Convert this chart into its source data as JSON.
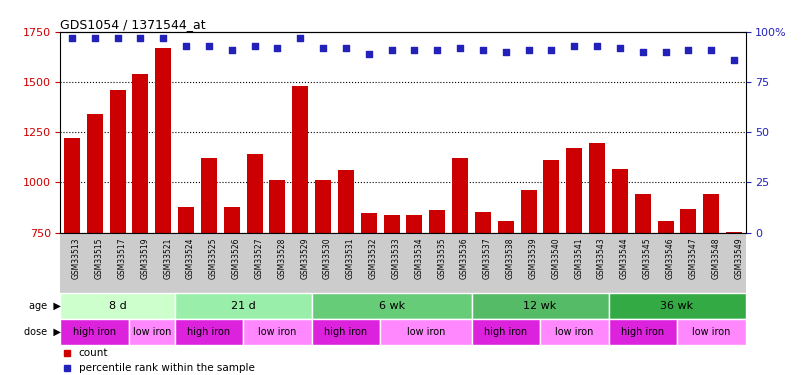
{
  "title": "GDS1054 / 1371544_at",
  "samples": [
    "GSM33513",
    "GSM33515",
    "GSM33517",
    "GSM33519",
    "GSM33521",
    "GSM33524",
    "GSM33525",
    "GSM33526",
    "GSM33527",
    "GSM33528",
    "GSM33529",
    "GSM33530",
    "GSM33531",
    "GSM33532",
    "GSM33533",
    "GSM33534",
    "GSM33535",
    "GSM33536",
    "GSM33537",
    "GSM33538",
    "GSM33539",
    "GSM33540",
    "GSM33541",
    "GSM33543",
    "GSM33544",
    "GSM33545",
    "GSM33546",
    "GSM33547",
    "GSM33548",
    "GSM33549"
  ],
  "counts": [
    1220,
    1340,
    1460,
    1540,
    1670,
    880,
    1120,
    880,
    1140,
    1010,
    1480,
    1010,
    1060,
    850,
    840,
    840,
    865,
    1120,
    855,
    810,
    960,
    1110,
    1170,
    1195,
    1065,
    940,
    810,
    870,
    940,
    755
  ],
  "percentiles": [
    97,
    97,
    97,
    97,
    97,
    93,
    93,
    91,
    93,
    92,
    97,
    92,
    92,
    89,
    91,
    91,
    91,
    92,
    91,
    90,
    91,
    91,
    93,
    93,
    92,
    90,
    90,
    91,
    91,
    86
  ],
  "ylim_left": [
    750,
    1750
  ],
  "ylim_right": [
    0,
    100
  ],
  "yticks_left": [
    750,
    1000,
    1250,
    1500,
    1750
  ],
  "yticks_right": [
    0,
    25,
    50,
    75,
    100
  ],
  "bar_color": "#CC0000",
  "dot_color": "#2222BB",
  "age_groups": [
    {
      "label": "8 d",
      "start": 0,
      "end": 5,
      "color": "#ccffcc"
    },
    {
      "label": "21 d",
      "start": 5,
      "end": 11,
      "color": "#99eeaa"
    },
    {
      "label": "6 wk",
      "start": 11,
      "end": 18,
      "color": "#66cc77"
    },
    {
      "label": "12 wk",
      "start": 18,
      "end": 24,
      "color": "#55bb66"
    },
    {
      "label": "36 wk",
      "start": 24,
      "end": 30,
      "color": "#33aa44"
    }
  ],
  "dose_groups": [
    {
      "label": "high iron",
      "start": 0,
      "end": 3,
      "color": "#dd22dd"
    },
    {
      "label": "low iron",
      "start": 3,
      "end": 5,
      "color": "#ff88ff"
    },
    {
      "label": "high iron",
      "start": 5,
      "end": 8,
      "color": "#dd22dd"
    },
    {
      "label": "low iron",
      "start": 8,
      "end": 11,
      "color": "#ff88ff"
    },
    {
      "label": "high iron",
      "start": 11,
      "end": 14,
      "color": "#dd22dd"
    },
    {
      "label": "low iron",
      "start": 14,
      "end": 18,
      "color": "#ff88ff"
    },
    {
      "label": "high iron",
      "start": 18,
      "end": 21,
      "color": "#dd22dd"
    },
    {
      "label": "low iron",
      "start": 21,
      "end": 24,
      "color": "#ff88ff"
    },
    {
      "label": "high iron",
      "start": 24,
      "end": 27,
      "color": "#dd22dd"
    },
    {
      "label": "low iron",
      "start": 27,
      "end": 30,
      "color": "#ff88ff"
    }
  ],
  "legend_count_color": "#CC0000",
  "legend_pct_color": "#2222BB",
  "xlabel_bg": "#cccccc",
  "fig_bg": "#ffffff"
}
